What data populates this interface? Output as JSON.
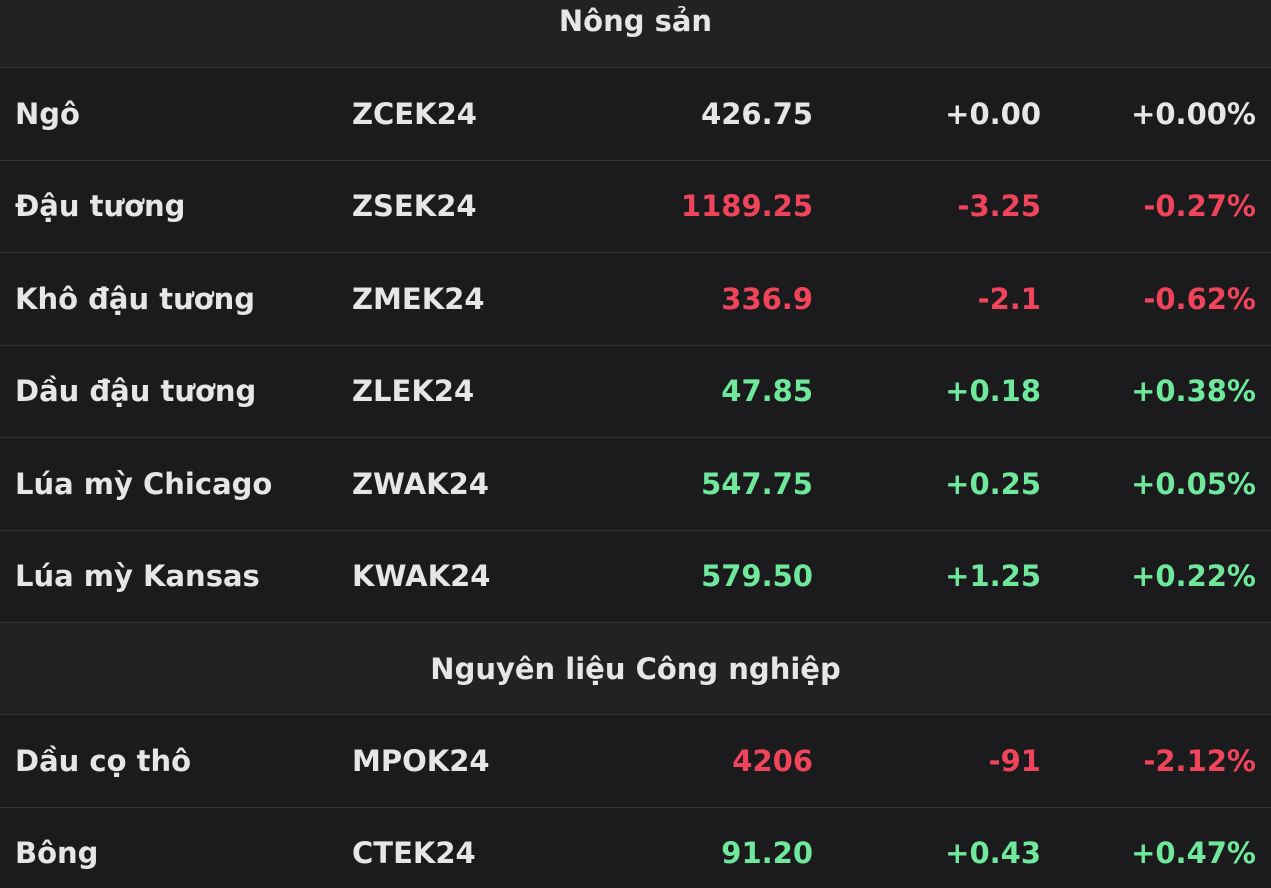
{
  "sections": [
    {
      "title": "Nông sản",
      "rows": [
        {
          "name": "Ngô",
          "symbol": "ZCEK24",
          "price": "426.75",
          "change": "+0.00",
          "percent": "+0.00%",
          "color": "#e6e6e6"
        },
        {
          "name": "Đậu tương",
          "symbol": "ZSEK24",
          "price": "1189.25",
          "change": "-3.25",
          "percent": "-0.27%",
          "color": "#f0445a"
        },
        {
          "name": "Khô đậu tương",
          "symbol": "ZMEK24",
          "price": "336.9",
          "change": "-2.1",
          "percent": "-0.62%",
          "color": "#f0445a"
        },
        {
          "name": "Dầu đậu tương",
          "symbol": "ZLEK24",
          "price": "47.85",
          "change": "+0.18",
          "percent": "+0.38%",
          "color": "#6fe89c"
        },
        {
          "name": "Lúa mỳ Chicago",
          "symbol": "ZWAK24",
          "price": "547.75",
          "change": "+0.25",
          "percent": "+0.05%",
          "color": "#6fe89c"
        },
        {
          "name": "Lúa mỳ Kansas",
          "symbol": "KWAK24",
          "price": "579.50",
          "change": "+1.25",
          "percent": "+0.22%",
          "color": "#6fe89c"
        }
      ]
    },
    {
      "title": "Nguyên liệu Công nghiệp",
      "rows": [
        {
          "name": "Dầu cọ thô",
          "symbol": "MPOK24",
          "price": "4206",
          "change": "-91",
          "percent": "-2.12%",
          "color": "#f0445a"
        },
        {
          "name": "Bông",
          "symbol": "CTEK24",
          "price": "91.20",
          "change": "+0.43",
          "percent": "+0.47%",
          "color": "#6fe89c"
        }
      ]
    }
  ]
}
